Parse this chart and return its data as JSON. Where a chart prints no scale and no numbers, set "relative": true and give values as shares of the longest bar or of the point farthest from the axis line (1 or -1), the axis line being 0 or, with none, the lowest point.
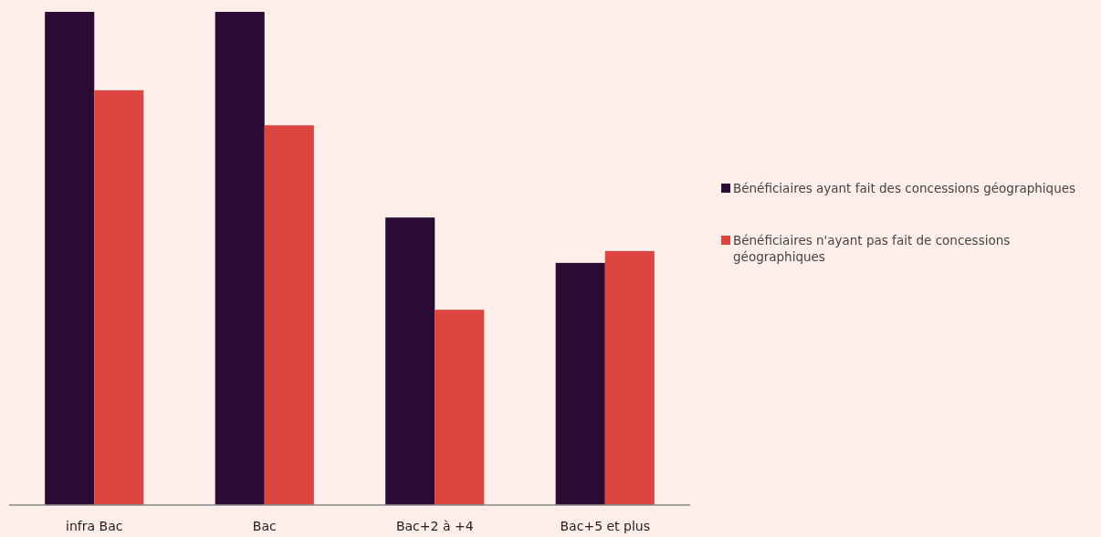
{
  "chart_data": {
    "type": "bar",
    "relative": true,
    "categories": [
      "infra Bac",
      "Bac",
      "Bac+2 à +4",
      "Bac+5 et plus"
    ],
    "series": [
      {
        "name": "Bénéficiaires ayant fait des concessions géographiques",
        "color": "#2b0a33",
        "values": [
          1,
          1,
          0.583,
          0.491
        ]
      },
      {
        "name": "Bénéficiaires n'ayant pas fait de concessions géographiques",
        "color": "#dc4540",
        "values": [
          0.841,
          0.77,
          0.396,
          0.515
        ]
      }
    ],
    "legend": "right",
    "grid": false
  }
}
